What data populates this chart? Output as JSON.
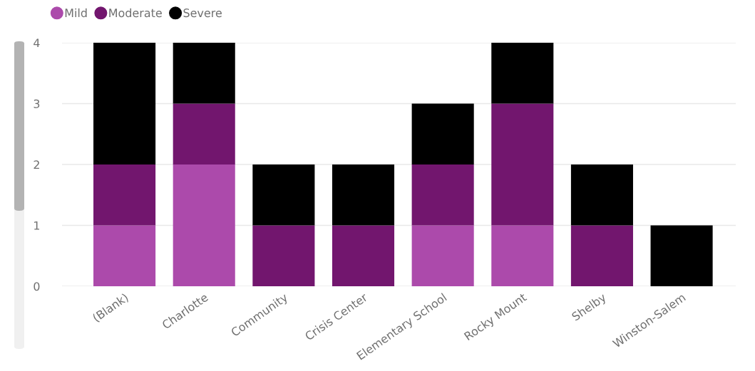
{
  "chart_data": {
    "type": "bar",
    "stacked": true,
    "categories": [
      "(Blank)",
      "Charlotte",
      "Community",
      "Crisis Center",
      "Elementary School",
      "Rocky Mount",
      "Shelby",
      "Winston-Salem"
    ],
    "series": [
      {
        "name": "Mild",
        "color": "#ac4aab",
        "values": [
          1,
          2,
          0,
          0,
          1,
          1,
          0,
          0
        ]
      },
      {
        "name": "Moderate",
        "color": "#72166e",
        "values": [
          1,
          1,
          1,
          1,
          1,
          2,
          1,
          0
        ]
      },
      {
        "name": "Severe",
        "color": "#000000",
        "values": [
          2,
          1,
          1,
          1,
          1,
          1,
          1,
          1
        ]
      }
    ],
    "ylim": [
      0,
      4
    ],
    "yticks": [
      0,
      1,
      2,
      3,
      4
    ],
    "grid": "y",
    "legend": "top left"
  }
}
